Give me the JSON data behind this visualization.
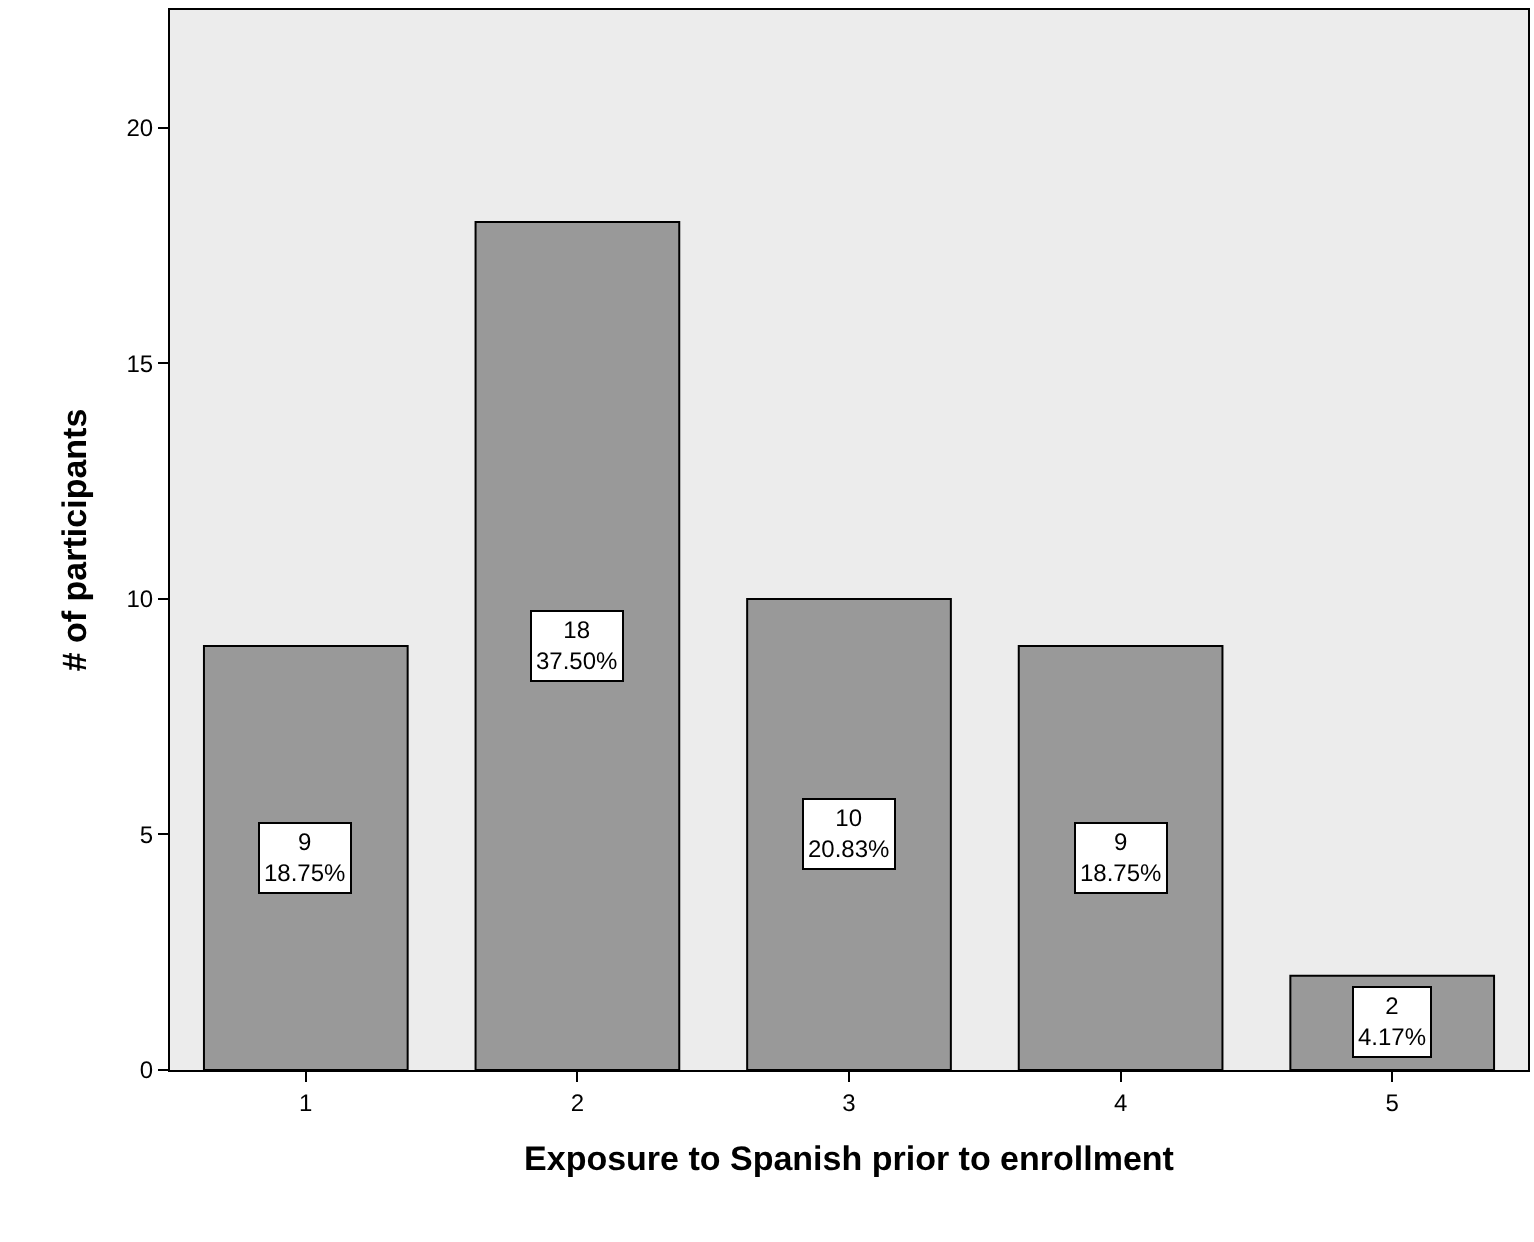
{
  "chart_data": {
    "type": "bar",
    "xlabel": "Exposure to Spanish prior to enrollment",
    "ylabel": "# of participants",
    "categories": [
      "1",
      "2",
      "3",
      "4",
      "5"
    ],
    "values": [
      9,
      18,
      10,
      9,
      2
    ],
    "value_labels": [
      "9\n18.75%",
      "18\n37.50%",
      "10\n20.83%",
      "9\n18.75%",
      "2\n4.17%"
    ],
    "color": "#999999",
    "ylim": [
      0,
      22.5
    ],
    "yticks": [
      0,
      5,
      10,
      15,
      20
    ],
    "grid": false,
    "legend": false
  }
}
